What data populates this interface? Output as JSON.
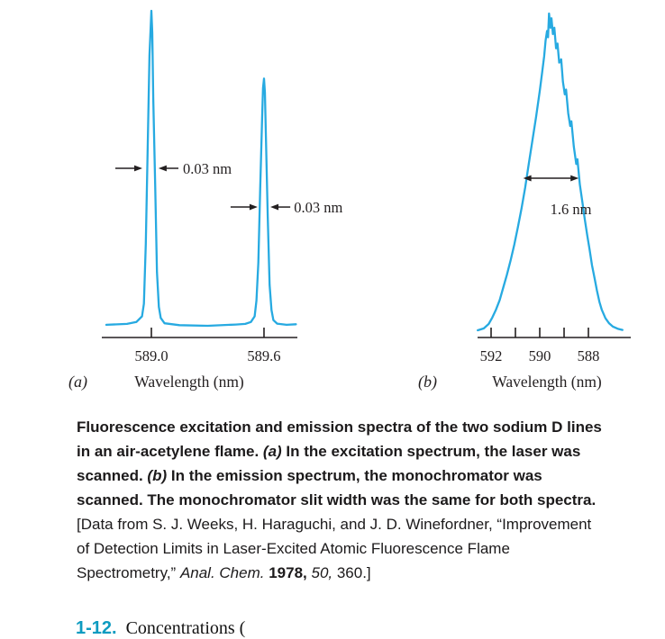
{
  "figure": {
    "curve_color": "#27aae1",
    "ink_color": "#231f20",
    "problem_number_color": "#0d9bc0"
  },
  "chart_data": [
    {
      "id": "excitation",
      "type": "line",
      "panel_label": "(a)",
      "xlabel": "Wavelength (nm)",
      "x_unit": "nm",
      "axis_direction": "increasing-right",
      "x_ticks": [
        {
          "x": 589.0,
          "label": "589.0"
        },
        {
          "x": 589.6,
          "label": "589.6"
        }
      ],
      "peaks": [
        {
          "center_nm": 589.0,
          "width_label": "0.03 nm",
          "rel_height": 1.0
        },
        {
          "center_nm": 589.6,
          "width_label": "0.03 nm",
          "rel_height": 0.785
        }
      ],
      "annotations": [
        {
          "label": "0.03 nm",
          "y_I": 0.5,
          "left_arrow_nm": [
            588.808,
            588.952
          ],
          "right_arrow_nm": [
            589.144,
            589.038
          ],
          "label_nm": 589.168
        },
        {
          "label": "0.03 nm",
          "y_I": 0.377,
          "left_arrow_nm": [
            589.422,
            589.566
          ],
          "right_arrow_nm": [
            589.74,
            589.634
          ],
          "label_nm": 589.76
        }
      ],
      "points": [
        [
          588.76,
          0.003
        ],
        [
          588.87,
          0.006
        ],
        [
          588.92,
          0.012
        ],
        [
          588.95,
          0.03
        ],
        [
          588.96,
          0.07
        ],
        [
          588.97,
          0.26
        ],
        [
          588.98,
          0.55
        ],
        [
          588.99,
          0.86
        ],
        [
          589.0,
          1.0
        ],
        [
          589.005,
          0.93
        ],
        [
          589.01,
          0.72
        ],
        [
          589.02,
          0.45
        ],
        [
          589.03,
          0.17
        ],
        [
          589.04,
          0.06
        ],
        [
          589.05,
          0.025
        ],
        [
          589.07,
          0.008
        ],
        [
          589.15,
          0.002
        ],
        [
          589.3,
          0.0
        ],
        [
          589.45,
          0.004
        ],
        [
          589.5,
          0.006
        ],
        [
          589.53,
          0.012
        ],
        [
          589.55,
          0.03
        ],
        [
          589.56,
          0.08
        ],
        [
          589.57,
          0.2
        ],
        [
          589.58,
          0.44
        ],
        [
          589.59,
          0.66
        ],
        [
          589.595,
          0.755
        ],
        [
          589.6,
          0.785
        ],
        [
          589.605,
          0.74
        ],
        [
          589.61,
          0.6
        ],
        [
          589.62,
          0.35
        ],
        [
          589.63,
          0.13
        ],
        [
          589.64,
          0.05
        ],
        [
          589.65,
          0.018
        ],
        [
          589.67,
          0.007
        ],
        [
          589.72,
          0.003
        ],
        [
          589.77,
          0.005
        ]
      ]
    },
    {
      "id": "emission",
      "type": "line",
      "panel_label": "(b)",
      "xlabel": "Wavelength (nm)",
      "x_unit": "nm",
      "axis_direction": "decreasing-right",
      "x_ticks": [
        {
          "x": 592,
          "label": "592"
        },
        {
          "x": 591
        },
        {
          "x": 590,
          "label": "590"
        },
        {
          "x": 589
        },
        {
          "x": 588,
          "label": "588"
        }
      ],
      "peaks": [
        {
          "center_nm": 589.6,
          "width_label": "1.6 nm",
          "rel_height": 1.0
        }
      ],
      "annotations": [
        {
          "label": "1.6 nm",
          "y_I": 0.48,
          "arrow_nm": [
            590.68,
            588.4
          ],
          "label_nm": 588.72
        }
      ],
      "points": [
        [
          592.55,
          0.0
        ],
        [
          592.3,
          0.006
        ],
        [
          592.1,
          0.02
        ],
        [
          591.95,
          0.04
        ],
        [
          591.8,
          0.065
        ],
        [
          591.65,
          0.095
        ],
        [
          591.5,
          0.135
        ],
        [
          591.35,
          0.175
        ],
        [
          591.2,
          0.22
        ],
        [
          591.05,
          0.27
        ],
        [
          590.9,
          0.325
        ],
        [
          590.75,
          0.385
        ],
        [
          590.6,
          0.45
        ],
        [
          590.45,
          0.525
        ],
        [
          590.3,
          0.6
        ],
        [
          590.15,
          0.675
        ],
        [
          590.0,
          0.755
        ],
        [
          589.9,
          0.815
        ],
        [
          589.82,
          0.865
        ],
        [
          589.76,
          0.915
        ],
        [
          589.7,
          0.945
        ],
        [
          589.66,
          0.925
        ],
        [
          589.62,
          1.0
        ],
        [
          589.56,
          0.955
        ],
        [
          589.52,
          0.985
        ],
        [
          589.46,
          0.935
        ],
        [
          589.4,
          0.955
        ],
        [
          589.33,
          0.89
        ],
        [
          589.27,
          0.905
        ],
        [
          589.2,
          0.845
        ],
        [
          589.12,
          0.855
        ],
        [
          589.05,
          0.785
        ],
        [
          588.97,
          0.745
        ],
        [
          588.92,
          0.76
        ],
        [
          588.83,
          0.685
        ],
        [
          588.75,
          0.645
        ],
        [
          588.7,
          0.66
        ],
        [
          588.6,
          0.58
        ],
        [
          588.5,
          0.525
        ],
        [
          588.45,
          0.54
        ],
        [
          588.35,
          0.46
        ],
        [
          588.25,
          0.405
        ],
        [
          588.15,
          0.35
        ],
        [
          588.05,
          0.3
        ],
        [
          587.95,
          0.255
        ],
        [
          587.85,
          0.205
        ],
        [
          587.75,
          0.165
        ],
        [
          587.65,
          0.125
        ],
        [
          587.55,
          0.09
        ],
        [
          587.45,
          0.065
        ],
        [
          587.3,
          0.038
        ],
        [
          587.15,
          0.022
        ],
        [
          587.0,
          0.012
        ],
        [
          586.8,
          0.005
        ],
        [
          586.6,
          0.001
        ]
      ]
    }
  ],
  "caption": {
    "segments": [
      {
        "t": "Fluorescence excitation and emission spectra of the two sodium D lines in an air-acetylene flame. ",
        "s": "b"
      },
      {
        "t": "(a)",
        "s": "bi"
      },
      {
        "t": " In the excitation spectrum, the laser was scanned. ",
        "s": "b"
      },
      {
        "t": "(b)",
        "s": "bi"
      },
      {
        "t": " In the emission spectrum, the monochromator was scanned. The monochromator slit width was the same for both spectra. ",
        "s": "b"
      },
      {
        "t": "[Data from S. J. Weeks, H. Haraguchi, and J. D. Winefordner, “Improvement of Detection Limits in Laser-Excited Atomic Fluorescence Flame Spectrometry,” ",
        "s": "r"
      },
      {
        "t": "Anal. Chem.",
        "s": "i"
      },
      {
        "t": " ",
        "s": "r"
      },
      {
        "t": "1978,",
        "s": "b"
      },
      {
        "t": " 50,",
        "s": "i"
      },
      {
        "t": " 360.]",
        "s": "r"
      }
    ]
  },
  "problem": {
    "number": "1-12.",
    "text": "Concentrations ("
  }
}
